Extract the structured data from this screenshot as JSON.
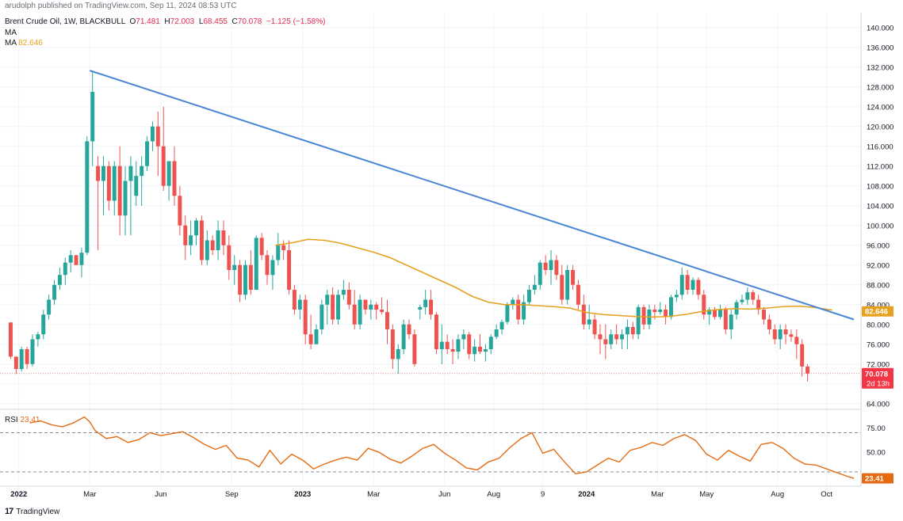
{
  "publisher_line": "arudolph published on TradingView.com, Sep 11, 2024 08:53 UTC",
  "legend": {
    "symbol": "Brent Crude Oil, 1W, BLACKBULL",
    "open_label": "O",
    "open": "71.481",
    "high_label": "H",
    "high": "72.003",
    "low_label": "L",
    "low": "68.455",
    "close_label": "C",
    "close": "70.078",
    "change": "−1.125 (−1.58%)",
    "ma1_label": "MA",
    "ma2_label": "MA",
    "ma2_value": "82.646"
  },
  "rsi_legend": {
    "label": "RSI",
    "value": "23.41"
  },
  "footer": {
    "brand": "TradingView"
  },
  "colors": {
    "up": "#26a69a",
    "down": "#ef5350",
    "trendline": "#4a86d4",
    "ma": "#e6a11e",
    "rsi": "#e46b12",
    "price_tag": "#f23645",
    "ma_tag": "#e6a11e"
  },
  "chart_data": [
    {
      "type": "candlestick",
      "title": "Brent Crude Oil, 1W, BLACKBULL",
      "ylim": [
        63,
        143
      ],
      "y_ticks": [
        "140.000",
        "136.000",
        "132.000",
        "128.000",
        "124.000",
        "120.000",
        "116.000",
        "112.000",
        "108.000",
        "104.000",
        "100.000",
        "96.000",
        "92.000",
        "88.000",
        "84.000",
        "80.000",
        "76.000",
        "72.000",
        "68.000",
        "64.000"
      ],
      "x_ticks": [
        "2022",
        "Mar",
        "Jun",
        "Sep",
        "2023",
        "Mar",
        "Jun",
        "Aug",
        "9",
        "2024",
        "Mar",
        "May",
        "Aug",
        "Oct"
      ],
      "x_tick_weeks": [
        2,
        15,
        28,
        41,
        54,
        67,
        80,
        89,
        98,
        106,
        119,
        128,
        141,
        150
      ],
      "candles": [
        [
          80.4,
          80.4,
          73.0,
          73.5
        ],
        [
          73.5,
          73.5,
          70.0,
          71.0
        ],
        [
          71.0,
          75.5,
          70.5,
          75.0
        ],
        [
          75.0,
          75.5,
          71.0,
          72.0
        ],
        [
          72.0,
          78.0,
          71.5,
          77.0
        ],
        [
          77.0,
          78.5,
          75.5,
          78.0
        ],
        [
          78.0,
          83.0,
          77.0,
          82.0
        ],
        [
          82.0,
          86.0,
          81.0,
          85.0
        ],
        [
          85.0,
          89.0,
          84.0,
          88.0
        ],
        [
          88.0,
          91.5,
          87.0,
          90.0
        ],
        [
          90.0,
          93.5,
          88.0,
          92.5
        ],
        [
          92.5,
          95.0,
          90.5,
          94.0
        ],
        [
          94.0,
          94.0,
          92.0,
          92.0
        ],
        [
          92.0,
          95.5,
          89.5,
          94.5
        ],
        [
          94.5,
          118.0,
          94.0,
          117.0
        ],
        [
          117.0,
          131.3,
          112.0,
          127.0
        ],
        [
          112.0,
          114.0,
          95.0,
          109.0
        ],
        [
          109.0,
          114.0,
          102.0,
          112.0
        ],
        [
          112.0,
          113.0,
          103.0,
          105.0
        ],
        [
          105.0,
          113.0,
          102.0,
          112.0
        ],
        [
          112.0,
          116.0,
          98.0,
          102.0
        ],
        [
          102.0,
          112.0,
          98.0,
          109.0
        ],
        [
          109.0,
          114.0,
          98.0,
          112.0
        ],
        [
          106.0,
          113.0,
          104.0,
          110.0
        ],
        [
          110.0,
          114.0,
          104.0,
          112.0
        ],
        [
          112.0,
          118.0,
          111.0,
          117.0
        ],
        [
          117.0,
          121.0,
          115.0,
          120.0
        ],
        [
          120.0,
          123.0,
          110.0,
          116.0
        ],
        [
          116.0,
          124.0,
          107.0,
          108.0
        ],
        [
          108.0,
          113.0,
          105.0,
          113.0
        ],
        [
          113.0,
          116.0,
          104.0,
          106.0
        ],
        [
          106.0,
          108.0,
          98.0,
          100.0
        ],
        [
          100.0,
          102.0,
          93.0,
          96.0
        ],
        [
          96.0,
          101.0,
          94.0,
          98.0
        ],
        [
          98.0,
          101.5,
          96.0,
          101.0
        ],
        [
          101.0,
          102.0,
          92.0,
          93.0
        ],
        [
          93.0,
          99.0,
          92.0,
          97.0
        ],
        [
          97.0,
          98.0,
          94.0,
          95.0
        ],
        [
          95.0,
          101.0,
          93.0,
          99.0
        ],
        [
          99.0,
          101.0,
          94.0,
          96.0
        ],
        [
          96.0,
          98.0,
          89.0,
          91.0
        ],
        [
          91.0,
          94.0,
          88.0,
          92.0
        ],
        [
          92.0,
          93.0,
          84.5,
          86.0
        ],
        [
          86.0,
          93.0,
          85.0,
          92.0
        ],
        [
          92.0,
          95.0,
          86.0,
          87.0
        ],
        [
          87.0,
          98.0,
          87.0,
          97.5
        ],
        [
          97.5,
          98.5,
          93.0,
          94.0
        ],
        [
          94.0,
          95.0,
          88.0,
          90.0
        ],
        [
          90.0,
          94.0,
          87.0,
          93.0
        ],
        [
          93.0,
          98.5,
          92.0,
          96.0
        ],
        [
          96.0,
          97.0,
          93.0,
          95.0
        ],
        [
          95.0,
          97.0,
          86.0,
          87.0
        ],
        [
          87.0,
          88.0,
          82.0,
          83.0
        ],
        [
          83.0,
          86.0,
          81.0,
          85.0
        ],
        [
          85.0,
          86.0,
          76.0,
          78.0
        ],
        [
          78.0,
          82.0,
          75.0,
          76.0
        ],
        [
          76.0,
          80.0,
          76.0,
          79.0
        ],
        [
          79.0,
          85.0,
          78.0,
          84.0
        ],
        [
          84.0,
          87.0,
          80.0,
          86.0
        ],
        [
          86.0,
          87.5,
          80.0,
          81.0
        ],
        [
          81.0,
          87.0,
          80.0,
          86.0
        ],
        [
          86.0,
          89.0,
          85.0,
          87.0
        ],
        [
          87.0,
          88.5,
          83.0,
          84.0
        ],
        [
          84.0,
          87.0,
          79.0,
          80.0
        ],
        [
          80.0,
          86.0,
          79.0,
          85.0
        ],
        [
          85.0,
          85.0,
          82.0,
          83.0
        ],
        [
          83.0,
          85.0,
          81.0,
          84.0
        ],
        [
          84.0,
          84.5,
          81.0,
          83.0
        ],
        [
          83.0,
          85.5,
          82.0,
          82.5
        ],
        [
          82.5,
          85.0,
          76.0,
          79.0
        ],
        [
          79.0,
          80.0,
          71.0,
          73.0
        ],
        [
          73.0,
          76.0,
          70.0,
          75.0
        ],
        [
          75.0,
          81.0,
          74.0,
          80.0
        ],
        [
          80.0,
          81.0,
          77.0,
          78.0
        ],
        [
          78.0,
          79.0,
          71.5,
          72.0
        ],
        [
          83.0,
          84.0,
          81.0,
          83.5
        ],
        [
          83.5,
          87.0,
          82.0,
          85.0
        ],
        [
          85.0,
          87.0,
          81.0,
          82.0
        ],
        [
          82.0,
          82.5,
          74.0,
          75.0
        ],
        [
          75.0,
          80.0,
          72.0,
          76.5
        ],
        [
          76.5,
          78.0,
          74.0,
          75.0
        ],
        [
          75.0,
          77.0,
          72.0,
          74.5
        ],
        [
          74.5,
          78.0,
          73.0,
          77.0
        ],
        [
          77.0,
          79.0,
          75.0,
          78.0
        ],
        [
          78.0,
          78.5,
          73.0,
          74.0
        ],
        [
          74.0,
          77.0,
          72.5,
          75.5
        ],
        [
          75.5,
          78.0,
          74.0,
          74.5
        ],
        [
          74.5,
          76.0,
          72.5,
          75.0
        ],
        [
          75.0,
          78.0,
          74.0,
          77.5
        ],
        [
          77.5,
          80.0,
          77.0,
          79.0
        ],
        [
          79.0,
          81.0,
          78.0,
          80.5
        ],
        [
          80.5,
          84.5,
          80.0,
          84.0
        ],
        [
          84.0,
          85.5,
          83.0,
          85.0
        ],
        [
          85.0,
          86.0,
          80.0,
          81.0
        ],
        [
          81.0,
          86.0,
          80.0,
          84.5
        ],
        [
          84.5,
          88.0,
          84.0,
          87.0
        ],
        [
          87.0,
          90.0,
          86.0,
          88.0
        ],
        [
          88.0,
          93.0,
          87.0,
          92.5
        ],
        [
          92.5,
          94.0,
          90.0,
          91.0
        ],
        [
          91.0,
          95.0,
          88.0,
          93.0
        ],
        [
          93.0,
          94.0,
          89.0,
          90.0
        ],
        [
          90.0,
          92.0,
          84.0,
          85.0
        ],
        [
          85.0,
          92.0,
          84.0,
          91.0
        ],
        [
          91.0,
          92.0,
          87.0,
          88.0
        ],
        [
          88.0,
          89.0,
          83.0,
          84.0
        ],
        [
          84.0,
          86.0,
          79.0,
          80.0
        ],
        [
          80.0,
          84.0,
          79.0,
          81.0
        ],
        [
          81.0,
          82.0,
          77.0,
          78.0
        ],
        [
          78.0,
          80.0,
          74.0,
          77.0
        ],
        [
          77.0,
          80.0,
          73.0,
          76.0
        ],
        [
          76.0,
          79.0,
          75.0,
          78.0
        ],
        [
          78.0,
          80.0,
          76.0,
          77.0
        ],
        [
          77.0,
          79.0,
          75.0,
          78.0
        ],
        [
          78.0,
          81.0,
          75.0,
          79.5
        ],
        [
          79.5,
          80.5,
          77.0,
          78.0
        ],
        [
          78.0,
          84.0,
          77.0,
          83.5
        ],
        [
          83.5,
          84.0,
          79.0,
          80.0
        ],
        [
          80.0,
          84.0,
          79.0,
          83.0
        ],
        [
          83.0,
          84.0,
          81.0,
          82.5
        ],
        [
          82.5,
          84.5,
          82.0,
          83.0
        ],
        [
          83.0,
          84.0,
          80.0,
          81.5
        ],
        [
          81.5,
          86.0,
          81.0,
          85.5
        ],
        [
          85.5,
          87.0,
          84.5,
          86.0
        ],
        [
          86.0,
          91.5,
          85.0,
          90.0
        ],
        [
          90.0,
          91.0,
          86.0,
          87.0
        ],
        [
          87.0,
          89.5,
          86.0,
          89.0
        ],
        [
          89.0,
          89.5,
          85.0,
          86.0
        ],
        [
          86.0,
          87.0,
          81.0,
          82.0
        ],
        [
          82.0,
          83.5,
          80.0,
          83.0
        ],
        [
          83.0,
          83.5,
          81.0,
          81.5
        ],
        [
          81.5,
          84.0,
          81.0,
          83.0
        ],
        [
          83.0,
          83.5,
          78.0,
          79.0
        ],
        [
          79.0,
          83.0,
          77.0,
          82.0
        ],
        [
          82.0,
          85.0,
          81.0,
          84.5
        ],
        [
          84.5,
          86.0,
          84.0,
          85.0
        ],
        [
          85.0,
          87.5,
          84.0,
          86.5
        ],
        [
          86.5,
          87.0,
          84.0,
          85.0
        ],
        [
          85.0,
          86.0,
          82.0,
          83.0
        ],
        [
          83.0,
          83.5,
          80.0,
          81.0
        ],
        [
          81.0,
          82.0,
          78.0,
          79.0
        ],
        [
          79.0,
          80.0,
          76.0,
          77.0
        ],
        [
          77.0,
          80.0,
          75.0,
          79.0
        ],
        [
          79.0,
          80.0,
          76.0,
          78.0
        ],
        [
          78.0,
          79.0,
          76.5,
          77.5
        ],
        [
          77.5,
          79.0,
          73.0,
          76.0
        ],
        [
          76.0,
          77.0,
          69.5,
          71.5
        ],
        [
          71.481,
          72.003,
          68.455,
          70.078
        ]
      ],
      "trendline": {
        "from": {
          "week": 15,
          "price": 131.3
        },
        "to": {
          "week": 155,
          "price": 81.0
        }
      },
      "moving_average": {
        "label": "MA",
        "weeks": [
          49,
          52,
          55,
          58,
          61,
          64,
          67,
          70,
          73,
          76,
          79,
          82,
          85,
          88,
          91,
          94,
          97,
          100,
          103,
          106,
          109,
          112,
          115,
          118,
          121,
          124,
          127,
          130,
          133,
          136,
          139,
          142,
          145,
          148,
          151
        ],
        "values": [
          96.0,
          96.5,
          97.2,
          97.0,
          96.4,
          95.5,
          94.6,
          93.5,
          92.0,
          90.5,
          89.0,
          87.5,
          85.7,
          84.5,
          84.0,
          84.0,
          83.8,
          83.6,
          83.3,
          82.4,
          82.0,
          81.8,
          81.6,
          81.5,
          81.6,
          82.0,
          82.6,
          83.0,
          83.2,
          83.1,
          83.3,
          83.6,
          83.7,
          83.4,
          82.9
        ]
      },
      "last_price_label": "70.078",
      "countdown_label": "2d 13h",
      "ma_last_label": "82.646"
    },
    {
      "type": "line",
      "title": "RSI",
      "ylim": [
        17,
        93
      ],
      "y_ticks": [
        "75.00",
        "50.00",
        "25.00"
      ],
      "levels": [
        70,
        30
      ],
      "weeks": [
        4,
        6,
        8,
        10,
        12,
        14,
        15,
        16,
        18,
        20,
        22,
        24,
        26,
        28,
        30,
        32,
        34,
        36,
        38,
        40,
        42,
        44,
        46,
        48,
        50,
        52,
        54,
        56,
        58,
        60,
        62,
        64,
        66,
        68,
        70,
        72,
        74,
        76,
        78,
        80,
        82,
        84,
        86,
        88,
        90,
        92,
        94,
        96,
        98,
        100,
        102,
        104,
        106,
        108,
        110,
        112,
        114,
        116,
        118,
        120,
        122,
        124,
        126,
        128,
        130,
        132,
        134,
        136,
        138,
        140,
        142,
        144,
        146,
        148,
        150,
        152,
        154,
        155
      ],
      "values": [
        80,
        82,
        78,
        76,
        80,
        86,
        81,
        72,
        64,
        66,
        60,
        63,
        70,
        67,
        69,
        71,
        65,
        58,
        53,
        57,
        44,
        42,
        35,
        52,
        38,
        48,
        42,
        33,
        38,
        42,
        45,
        42,
        54,
        50,
        43,
        39,
        46,
        54,
        58,
        49,
        42,
        34,
        32,
        40,
        44,
        55,
        64,
        70,
        49,
        53,
        40,
        28,
        30,
        37,
        44,
        40,
        52,
        55,
        60,
        57,
        64,
        68,
        62,
        48,
        42,
        52,
        46,
        41,
        58,
        60,
        54,
        44,
        38,
        37,
        33,
        29,
        25,
        23.41
      ]
    }
  ]
}
